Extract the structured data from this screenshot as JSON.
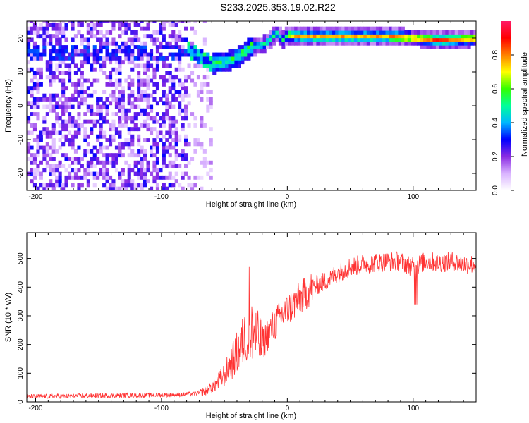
{
  "title": "S233.2025.353.19.02.R22",
  "chart_data": [
    {
      "type": "heatmap",
      "xlabel": "Height of straight line (km)",
      "ylabel": "Frequency (Hz)",
      "xlim": [
        -207,
        150
      ],
      "ylim": [
        -25,
        25
      ],
      "xticks": [
        -200,
        -100,
        0,
        100
      ],
      "yticks": [
        -20,
        -10,
        0,
        10,
        20
      ],
      "colorbar": {
        "label": "Normalized spectral amplitude",
        "range": [
          0,
          1
        ],
        "ticks": [
          "0.0",
          "0.2",
          "0.4",
          "0.6",
          "0.8"
        ],
        "tick_values": [
          0.0,
          0.2,
          0.4,
          0.6,
          0.8
        ],
        "stops": [
          "#ffffff",
          "#d9b3ff",
          "#8a2be2",
          "#0000ff",
          "#00b7ff",
          "#00ff99",
          "#33ff00",
          "#ffff00",
          "#ff8000",
          "#ff0000",
          "#ff1a66"
        ]
      },
      "ridge": {
        "x": [
          -90,
          -80,
          -70,
          -60,
          -50,
          -40,
          -30,
          -20,
          -15,
          -10,
          -5,
          0,
          10,
          20,
          40,
          60,
          80,
          100,
          120,
          150
        ],
        "y": [
          15,
          16,
          14,
          12,
          12.5,
          14,
          17,
          17.5,
          19,
          21,
          19,
          20.5,
          20,
          20,
          20,
          20,
          20,
          19.5,
          19,
          19.5
        ]
      }
    },
    {
      "type": "line",
      "xlabel": "Height of straight line (km)",
      "ylabel": "SNR (10 * v/v)",
      "xlim": [
        -207,
        150
      ],
      "ylim": [
        0,
        590
      ],
      "xticks": [
        -200,
        -100,
        0,
        100
      ],
      "yticks": [
        0,
        100,
        200,
        300,
        400,
        500
      ],
      "series": [
        {
          "name": "SNR",
          "color": "#ff3333",
          "x": [
            -207,
            -180,
            -150,
            -120,
            -100,
            -90,
            -80,
            -75,
            -70,
            -65,
            -60,
            -55,
            -50,
            -45,
            -40,
            -35,
            -30,
            -25,
            -20,
            -15,
            -10,
            -5,
            0,
            10,
            20,
            30,
            40,
            50,
            60,
            70,
            80,
            90,
            100,
            110,
            120,
            130,
            140,
            150
          ],
          "y": [
            18,
            20,
            22,
            23,
            24,
            25,
            27,
            28,
            30,
            38,
            50,
            70,
            95,
            130,
            170,
            210,
            250,
            230,
            200,
            240,
            270,
            300,
            320,
            360,
            400,
            420,
            450,
            470,
            480,
            485,
            490,
            490,
            470,
            490,
            485,
            490,
            480,
            480
          ]
        }
      ]
    }
  ]
}
